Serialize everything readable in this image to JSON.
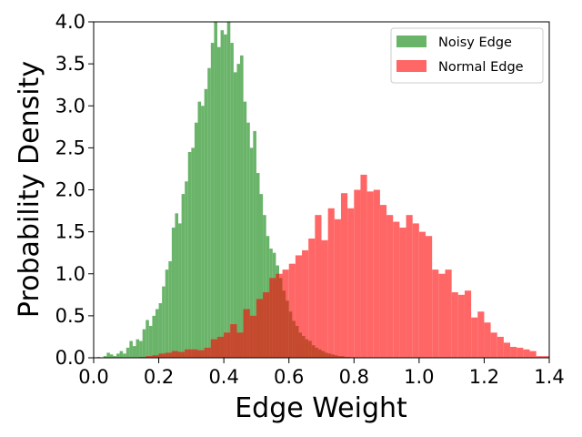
{
  "chart_data": {
    "type": "bar",
    "title": "",
    "xlabel": "Edge Weight",
    "ylabel": "Probability Density",
    "xlim": [
      0.0,
      1.4
    ],
    "ylim": [
      0.0,
      4.0
    ],
    "xticks": [
      "0.0",
      "0.2",
      "0.4",
      "0.6",
      "0.8",
      "1.0",
      "1.2",
      "1.4"
    ],
    "yticks": [
      "0.0",
      "0.5",
      "1.0",
      "1.5",
      "2.0",
      "2.5",
      "3.0",
      "3.5",
      "4.0"
    ],
    "grid": false,
    "legend_position": "top-right",
    "overlap_color": "#c44a2e",
    "series": [
      {
        "name": "Noisy Edge",
        "color": "#6ab46a",
        "bin_width": 0.01,
        "x": [
          0.0,
          0.01,
          0.02,
          0.03,
          0.04,
          0.05,
          0.06,
          0.07,
          0.08,
          0.09,
          0.1,
          0.11,
          0.12,
          0.13,
          0.14,
          0.15,
          0.16,
          0.17,
          0.18,
          0.19,
          0.2,
          0.21,
          0.22,
          0.23,
          0.24,
          0.25,
          0.26,
          0.27,
          0.28,
          0.29,
          0.3,
          0.31,
          0.32,
          0.33,
          0.34,
          0.35,
          0.36,
          0.37,
          0.38,
          0.39,
          0.4,
          0.41,
          0.42,
          0.43,
          0.44,
          0.45,
          0.46,
          0.47,
          0.48,
          0.49,
          0.5,
          0.51,
          0.52,
          0.53,
          0.54,
          0.55,
          0.56,
          0.57,
          0.58,
          0.59,
          0.6,
          0.61,
          0.62,
          0.63,
          0.64,
          0.65,
          0.66,
          0.67,
          0.68,
          0.69,
          0.7,
          0.71,
          0.72,
          0.73,
          0.74,
          0.75,
          0.76,
          0.77,
          0.78,
          0.79
        ],
        "values": [
          0.0,
          0.01,
          0.0,
          0.02,
          0.06,
          0.04,
          0.02,
          0.05,
          0.08,
          0.05,
          0.12,
          0.2,
          0.14,
          0.22,
          0.2,
          0.34,
          0.45,
          0.38,
          0.5,
          0.58,
          0.65,
          0.85,
          1.05,
          1.15,
          1.55,
          1.72,
          1.6,
          1.95,
          2.1,
          2.45,
          2.5,
          2.8,
          3.05,
          3.0,
          3.2,
          3.45,
          3.75,
          4.0,
          3.7,
          3.9,
          3.85,
          4.0,
          3.75,
          3.4,
          3.5,
          3.6,
          3.05,
          2.8,
          2.5,
          2.7,
          2.2,
          1.95,
          1.7,
          1.45,
          1.3,
          1.25,
          1.1,
          0.95,
          0.8,
          0.68,
          0.55,
          0.44,
          0.38,
          0.3,
          0.26,
          0.22,
          0.2,
          0.15,
          0.12,
          0.1,
          0.08,
          0.06,
          0.05,
          0.04,
          0.03,
          0.02,
          0.02,
          0.01,
          0.01,
          0.0
        ]
      },
      {
        "name": "Normal Edge",
        "color": "#ff6666",
        "bin_width": 0.02,
        "x": [
          0.1,
          0.12,
          0.14,
          0.16,
          0.18,
          0.2,
          0.22,
          0.24,
          0.26,
          0.28,
          0.3,
          0.32,
          0.34,
          0.36,
          0.38,
          0.4,
          0.42,
          0.44,
          0.46,
          0.48,
          0.5,
          0.52,
          0.54,
          0.56,
          0.58,
          0.6,
          0.62,
          0.64,
          0.66,
          0.68,
          0.7,
          0.72,
          0.74,
          0.76,
          0.78,
          0.8,
          0.82,
          0.84,
          0.86,
          0.88,
          0.9,
          0.92,
          0.94,
          0.96,
          0.98,
          1.0,
          1.02,
          1.04,
          1.06,
          1.08,
          1.1,
          1.12,
          1.14,
          1.16,
          1.18,
          1.2,
          1.22,
          1.24,
          1.26,
          1.28,
          1.3,
          1.32,
          1.34,
          1.36,
          1.38
        ],
        "values": [
          0.0,
          0.0,
          0.01,
          0.02,
          0.03,
          0.05,
          0.06,
          0.08,
          0.07,
          0.1,
          0.1,
          0.09,
          0.12,
          0.22,
          0.25,
          0.3,
          0.4,
          0.3,
          0.58,
          0.5,
          0.7,
          0.78,
          0.95,
          1.0,
          1.05,
          1.12,
          1.22,
          1.28,
          1.42,
          1.7,
          1.4,
          1.78,
          1.65,
          1.96,
          1.78,
          2.0,
          2.18,
          1.98,
          2.0,
          1.82,
          1.7,
          1.62,
          1.55,
          1.7,
          1.6,
          1.5,
          1.45,
          1.05,
          1.0,
          1.05,
          0.78,
          0.75,
          0.8,
          0.48,
          0.55,
          0.42,
          0.3,
          0.25,
          0.18,
          0.13,
          0.12,
          0.1,
          0.08,
          0.02,
          0.02
        ]
      }
    ]
  }
}
